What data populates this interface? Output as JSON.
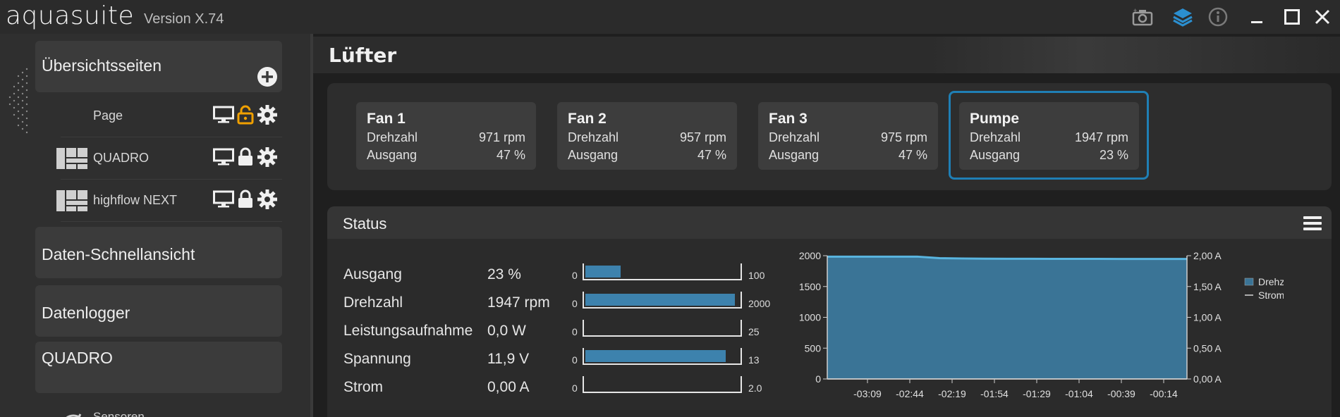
{
  "app": {
    "name": "aquasuite",
    "version": "Version X.74"
  },
  "titlebar_icons": [
    "camera-icon",
    "layers-icon",
    "info-icon",
    "minimize-icon",
    "maximize-icon",
    "close-icon"
  ],
  "sidebar": {
    "overview_label": "Übersichtsseiten",
    "pages": [
      {
        "label": "Page",
        "icon": "",
        "lock": "unlocked"
      },
      {
        "label": "QUADRO",
        "icon": "grid-icon",
        "lock": "locked"
      },
      {
        "label": "highflow NEXT",
        "icon": "grid-icon",
        "lock": "locked"
      }
    ],
    "quickview_label": "Daten-Schnellansicht",
    "logger_label": "Datenlogger",
    "device_label": "QUADRO",
    "sensors_label": "Sensoren"
  },
  "header": {
    "title": "Lüfter"
  },
  "fans": [
    {
      "name": "Fan 1",
      "speed_label": "Drehzahl",
      "speed": "971 rpm",
      "output_label": "Ausgang",
      "output": "47 %"
    },
    {
      "name": "Fan 2",
      "speed_label": "Drehzahl",
      "speed": "957 rpm",
      "output_label": "Ausgang",
      "output": "47 %"
    },
    {
      "name": "Fan 3",
      "speed_label": "Drehzahl",
      "speed": "975 rpm",
      "output_label": "Ausgang",
      "output": "47 %"
    },
    {
      "name": "Pumpe",
      "speed_label": "Drehzahl",
      "speed": "1947 rpm",
      "output_label": "Ausgang",
      "output": "23 %"
    }
  ],
  "status": {
    "title": "Status",
    "rows": [
      {
        "label": "Ausgang",
        "value": "23 %",
        "min": "0",
        "max": "100",
        "fill": 0.23
      },
      {
        "label": "Drehzahl",
        "value": "1947 rpm",
        "min": "0",
        "max": "2000",
        "fill": 0.9735
      },
      {
        "label": "Leistungsaufnahme",
        "value": "0,0 W",
        "min": "0",
        "max": "25",
        "fill": 0
      },
      {
        "label": "Spannung",
        "value": "11,9 V",
        "min": "0",
        "max": "13",
        "fill": 0.915
      },
      {
        "label": "Strom",
        "value": "0,00 A",
        "min": "0",
        "max": "2.0",
        "fill": 0
      }
    ]
  },
  "colors": {
    "accent": "#1f7fb5",
    "bar": "#3d82ad",
    "area": "#3a7496",
    "line": "#59b5e0"
  },
  "chart_data": {
    "type": "area",
    "x_ticks": [
      "-03:09",
      "-02:44",
      "-02:19",
      "-01:54",
      "-01:29",
      "-01:04",
      "-00:39",
      "-00:14"
    ],
    "y_left_ticks": [
      "0",
      "500",
      "1000",
      "1500",
      "2000"
    ],
    "y_right_ticks": [
      "0,00 A",
      "0,50 A",
      "1,00 A",
      "1,50 A",
      "2,00 A"
    ],
    "ylim_left": [
      0,
      2000
    ],
    "ylim_right": [
      0,
      2.0
    ],
    "series": [
      {
        "name": "Drehzahl",
        "values": [
          1985,
          1985,
          1985,
          1985,
          1985,
          1960,
          1955,
          1952,
          1950,
          1950,
          1949,
          1948,
          1948,
          1947,
          1947,
          1947,
          1947
        ]
      },
      {
        "name": "Strom",
        "values": [
          0,
          0,
          0,
          0,
          0,
          0,
          0,
          0,
          0,
          0,
          0,
          0,
          0,
          0,
          0,
          0,
          0
        ]
      }
    ],
    "legend": [
      "Drehzahl",
      "Strom"
    ],
    "legend_position": "right"
  }
}
